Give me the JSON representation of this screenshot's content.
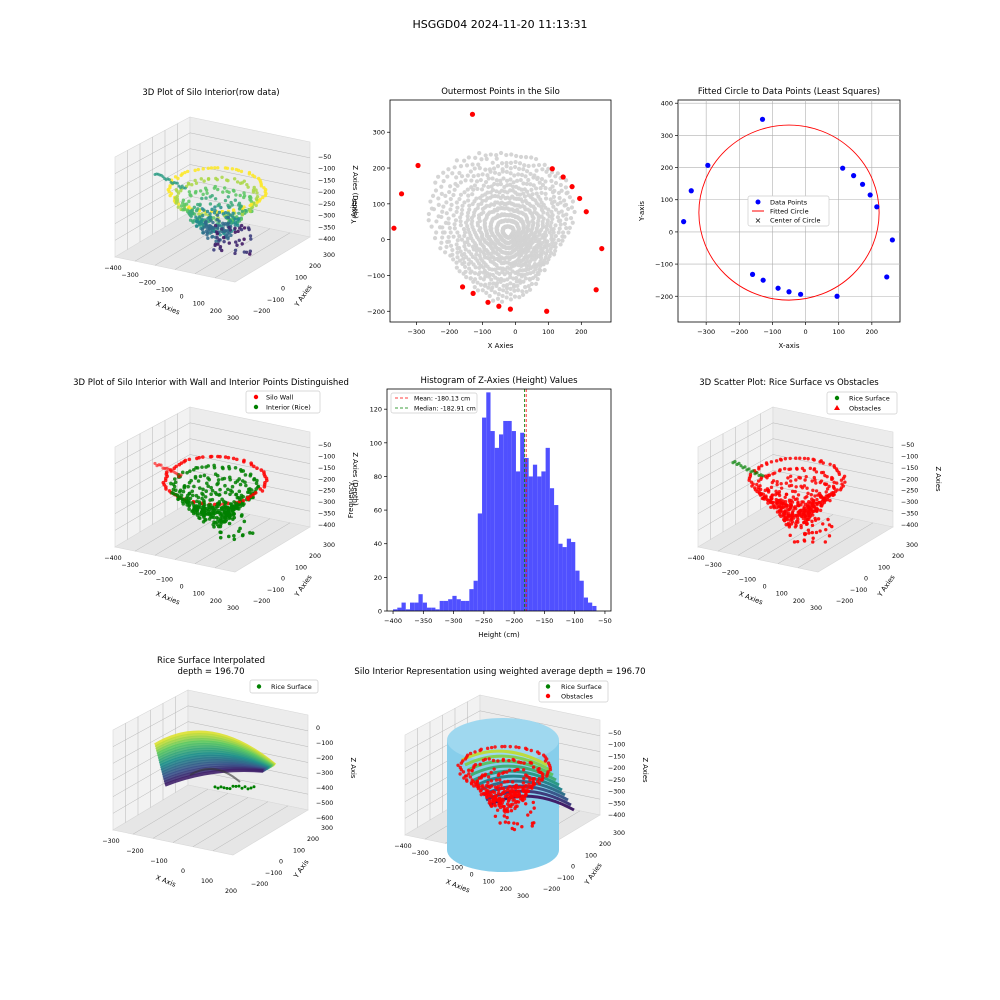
{
  "suptitle": "HSGGD04 2024-11-20 11:13:31",
  "colors": {
    "wall": "#ff0000",
    "rice": "#008000",
    "sky": "#87ceeb",
    "blue": "#0000ff",
    "gray": "#d3d3d3",
    "hist": "#5050ff"
  },
  "chart_data": [
    {
      "type": "scatter",
      "title": "3D Plot of Silo Interior(row data)",
      "xlabel": "X Axies",
      "ylabel": "Y Axies",
      "zlabel": "Z Axies (Depth)",
      "xticks": [
        "−400",
        "−300",
        "−200",
        "−100",
        "0",
        "100",
        "200",
        "300"
      ],
      "yticks": [
        "−200",
        "−100",
        "0",
        "100",
        "200",
        "300"
      ],
      "zticks": [
        "−50",
        "−100",
        "−150",
        "−200",
        "−250",
        "−300",
        "−350",
        "−400"
      ],
      "colormap": "viridis"
    },
    {
      "type": "scatter",
      "title": "Outermost Points in the Silo",
      "xlabel": "X Axies",
      "ylabel": "Y Axies",
      "xlim": [
        -380,
        290
      ],
      "ylim": [
        -230,
        390
      ],
      "xticks": [
        "−300",
        "−200",
        "−100",
        "0",
        "100",
        "200"
      ],
      "yticks": [
        "−200",
        "−100",
        "0",
        "100",
        "200",
        "300"
      ],
      "outer_points": [
        [
          -130,
          350
        ],
        [
          -295,
          207
        ],
        [
          -345,
          128
        ],
        [
          -368,
          32
        ],
        [
          -160,
          -132
        ],
        [
          -128,
          -150
        ],
        [
          -83,
          -175
        ],
        [
          -50,
          -186
        ],
        [
          -15,
          -194
        ],
        [
          95,
          -200
        ],
        [
          112,
          198
        ],
        [
          145,
          175
        ],
        [
          172,
          148
        ],
        [
          195,
          115
        ],
        [
          215,
          78
        ],
        [
          245,
          -140
        ],
        [
          262,
          -25
        ]
      ]
    },
    {
      "type": "scatter",
      "title": "Fitted Circle to Data Points (Least Squares)",
      "xlabel": "X-axis",
      "ylabel": "Y-axis",
      "xlim": [
        -385,
        285
      ],
      "ylim": [
        -280,
        410
      ],
      "xticks": [
        "−300",
        "−200",
        "−100",
        "0",
        "100",
        "200"
      ],
      "yticks": [
        "−200",
        "−100",
        "0",
        "100",
        "200",
        "300",
        "400"
      ],
      "legend": [
        "Data Points",
        "Fitted Circle",
        "Center of Circle"
      ],
      "data_points": [
        [
          -130,
          350
        ],
        [
          -295,
          207
        ],
        [
          -345,
          128
        ],
        [
          -368,
          32
        ],
        [
          -160,
          -132
        ],
        [
          -128,
          -150
        ],
        [
          -83,
          -175
        ],
        [
          -50,
          -186
        ],
        [
          -15,
          -194
        ],
        [
          95,
          -200
        ],
        [
          112,
          198
        ],
        [
          145,
          175
        ],
        [
          172,
          148
        ],
        [
          195,
          115
        ],
        [
          215,
          78
        ],
        [
          245,
          -140
        ],
        [
          262,
          -25
        ]
      ],
      "circle": {
        "cx": -50,
        "cy": 60,
        "r": 272
      }
    },
    {
      "type": "scatter",
      "title": "3D Plot of Silo Interior with Wall and Interior Points Distinguished",
      "xlabel": "X Axies",
      "ylabel": "Y Axies",
      "zlabel": "Z Axies (Depth)",
      "legend": [
        "Silo Wall",
        "Interior (Rice)"
      ],
      "xticks": [
        "−400",
        "−300",
        "−200",
        "−100",
        "0",
        "100",
        "200",
        "300"
      ],
      "yticks": [
        "−200",
        "−100",
        "0",
        "100",
        "200",
        "300"
      ],
      "zticks": [
        "−50",
        "−100",
        "−150",
        "−200",
        "−250",
        "−300",
        "−350",
        "−400"
      ]
    },
    {
      "type": "bar",
      "title": "Histogram of Z-Axies (Height) Values",
      "xlabel": "Height (cm)",
      "ylabel": "Frequency",
      "xlim": [
        -410,
        -40
      ],
      "ylim": [
        0,
        132
      ],
      "xticks": [
        "−400",
        "−350",
        "−300",
        "−250",
        "−200",
        "−150",
        "−100",
        "−50"
      ],
      "yticks": [
        "0",
        "20",
        "40",
        "60",
        "80",
        "100",
        "120"
      ],
      "legend": [
        "Mean: -180.13 cm",
        "Median: -182.91 cm"
      ],
      "mean": -180.13,
      "median": -182.91,
      "bin_start": -400,
      "bin_width": 7,
      "values": [
        1,
        2,
        5,
        1,
        5,
        5,
        10,
        5,
        2,
        2,
        1,
        6,
        6,
        7,
        9,
        7,
        6,
        6,
        13,
        18,
        58,
        115,
        130,
        107,
        97,
        105,
        113,
        113,
        107,
        83,
        106,
        91,
        80,
        87,
        80,
        83,
        97,
        73,
        63,
        40,
        38,
        43,
        41,
        24,
        18,
        8,
        5,
        3
      ]
    },
    {
      "type": "scatter",
      "title": "3D Scatter Plot: Rice Surface vs Obstacles",
      "xlabel": "X Axies",
      "ylabel": "Y Axies",
      "zlabel": "Z Axies",
      "legend": [
        "Rice Surface",
        "Obstacles"
      ],
      "xticks": [
        "−400",
        "−300",
        "−200",
        "−100",
        "0",
        "100",
        "200",
        "300"
      ],
      "yticks": [
        "−200",
        "−100",
        "0",
        "100",
        "200",
        "300"
      ],
      "zticks": [
        "−50",
        "−100",
        "−150",
        "−200",
        "−250",
        "−300",
        "−350",
        "−400"
      ]
    },
    {
      "type": "area",
      "title": "Rice Surface Interpolated\ndepth = 196.70",
      "title_lines": [
        "Rice Surface Interpolated",
        "depth = 196.70"
      ],
      "xlabel": "X Axis",
      "ylabel": "Y Axis",
      "zlabel": "Z Axis",
      "legend": [
        "Rice Surface"
      ],
      "xticks": [
        "−300",
        "−200",
        "−100",
        "0",
        "100",
        "200"
      ],
      "yticks": [
        "−200",
        "−100",
        "0",
        "100",
        "200",
        "300"
      ],
      "zticks": [
        "0",
        "−100",
        "−200",
        "−300",
        "−400",
        "−500",
        "−600"
      ]
    },
    {
      "type": "scatter",
      "title": "Silo Interior Representation using weighted average depth = 196.70",
      "xlabel": "X Axies",
      "ylabel": "Y Axies",
      "zlabel": "Z Axies",
      "legend": [
        "Rice Surface",
        "Obstacles"
      ],
      "xticks": [
        "−400",
        "−300",
        "−200",
        "−100",
        "0",
        "100",
        "200",
        "300"
      ],
      "yticks": [
        "−200",
        "−100",
        "0",
        "100",
        "200",
        "300"
      ],
      "zticks": [
        "−50",
        "−100",
        "−150",
        "−200",
        "−250",
        "−300",
        "−350",
        "−400"
      ]
    }
  ]
}
